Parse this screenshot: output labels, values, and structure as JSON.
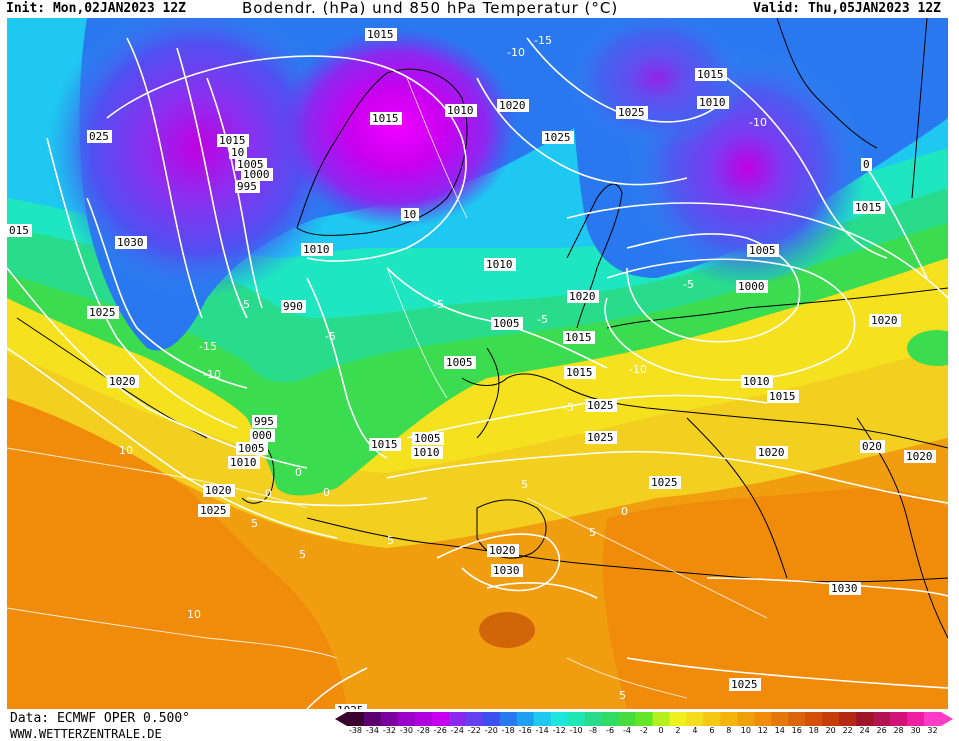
{
  "header": {
    "init": "Init: Mon,02JAN2023 12Z",
    "title": "Bodendr. (hPa) und 850 hPa Temperatur (°C)",
    "valid": "Valid: Thu,05JAN2023 12Z"
  },
  "footer": {
    "data_source": "Data: ECMWF OPER 0.500°",
    "website": "WWW.WETTERZENTRALE.DE"
  },
  "legend": {
    "unit": "°C",
    "ticks": [
      "-38",
      "-34",
      "-32",
      "-30",
      "-28",
      "-26",
      "-24",
      "-22",
      "-20",
      "-18",
      "-16",
      "-14",
      "-12",
      "-10",
      "-8",
      "-6",
      "-4",
      "-2",
      "0",
      "2",
      "4",
      "6",
      "8",
      "10",
      "12",
      "14",
      "16",
      "18",
      "20",
      "22",
      "24",
      "26",
      "28",
      "30",
      "32"
    ],
    "colors": [
      "#3a0030",
      "#5a0070",
      "#7a00a0",
      "#9a00c8",
      "#b000e0",
      "#c800f0",
      "#8c28f0",
      "#6440f0",
      "#3c50f0",
      "#2878f0",
      "#1ea0f0",
      "#1ec8f0",
      "#1ee6dc",
      "#1ee6b4",
      "#28dc8c",
      "#32dc64",
      "#46dc3c",
      "#64e628",
      "#b4f01e",
      "#f0f01e",
      "#f5dc1e",
      "#f5c814",
      "#f5b40a",
      "#f0a00a",
      "#f08c0a",
      "#e6780a",
      "#dc640a",
      "#d2500a",
      "#c83c0a",
      "#b42814",
      "#a01428",
      "#b41450",
      "#d21478",
      "#f01ea0",
      "#ff3cc8"
    ]
  },
  "map": {
    "pressure_labels": [
      {
        "text": "1015"
      },
      {
        "text": "025"
      },
      {
        "text": "1015"
      },
      {
        "text": "10"
      },
      {
        "text": "1005"
      },
      {
        "text": "1000"
      },
      {
        "text": "995"
      },
      {
        "text": "1015"
      },
      {
        "text": "1010"
      },
      {
        "text": "1020"
      },
      {
        "text": "1025"
      },
      {
        "text": "1025"
      },
      {
        "text": "1015"
      },
      {
        "text": "1010"
      },
      {
        "text": "1030"
      },
      {
        "text": "1025"
      },
      {
        "text": "015"
      },
      {
        "text": "1010"
      },
      {
        "text": "990"
      },
      {
        "text": "1010"
      },
      {
        "text": "10"
      },
      {
        "text": "1005"
      },
      {
        "text": "1005"
      },
      {
        "text": "1015"
      },
      {
        "text": "1020"
      },
      {
        "text": "1015"
      },
      {
        "text": "1000"
      },
      {
        "text": "1005"
      },
      {
        "text": "1015"
      },
      {
        "text": "1020"
      },
      {
        "text": "1010"
      },
      {
        "text": "1015"
      },
      {
        "text": "1020"
      },
      {
        "text": "995"
      },
      {
        "text": "000"
      },
      {
        "text": "1005"
      },
      {
        "text": "1010"
      },
      {
        "text": "1005"
      },
      {
        "text": "1010"
      },
      {
        "text": "1015"
      },
      {
        "text": "1020"
      },
      {
        "text": "1025"
      },
      {
        "text": "1020"
      },
      {
        "text": "1025"
      },
      {
        "text": "1025"
      },
      {
        "text": "020"
      },
      {
        "text": "1020"
      },
      {
        "text": "1020"
      },
      {
        "text": "1030"
      },
      {
        "text": "1030"
      },
      {
        "text": "1025"
      },
      {
        "text": "1025"
      },
      {
        "text": "1025"
      },
      {
        "text": "0"
      }
    ],
    "temperature_labels": [
      {
        "text": "-10"
      },
      {
        "text": "-15"
      },
      {
        "text": "-10"
      },
      {
        "text": "-5"
      },
      {
        "text": "-15"
      },
      {
        "text": "-10"
      },
      {
        "text": "-5"
      },
      {
        "text": "-5"
      },
      {
        "text": "-5"
      },
      {
        "text": "-10"
      },
      {
        "text": "-5"
      },
      {
        "text": "0"
      },
      {
        "text": "5"
      },
      {
        "text": "10"
      },
      {
        "text": "5"
      },
      {
        "text": "10"
      },
      {
        "text": "5"
      },
      {
        "text": "0"
      },
      {
        "text": "5"
      },
      {
        "text": "5"
      },
      {
        "text": "5"
      },
      {
        "text": "0"
      },
      {
        "text": "-5"
      },
      {
        "text": "0"
      }
    ]
  }
}
